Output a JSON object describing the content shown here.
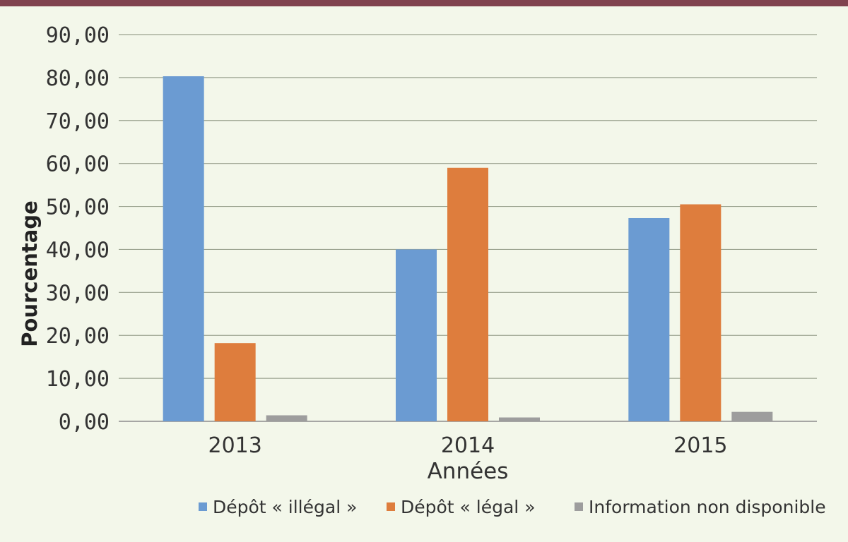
{
  "chart_data": {
    "type": "bar",
    "categories": [
      "2013",
      "2014",
      "2015"
    ],
    "series": [
      {
        "name": "Dépôt « illégal »",
        "values": [
          80.3,
          40.0,
          47.3
        ],
        "color": "#6b9bd2"
      },
      {
        "name": "Dépôt « légal »",
        "values": [
          18.2,
          59.0,
          50.5
        ],
        "color": "#de7d3d"
      },
      {
        "name": "Information non disponible",
        "values": [
          1.4,
          0.9,
          2.2
        ],
        "color": "#9d9d9d"
      }
    ],
    "title": "",
    "xlabel": "Années",
    "ylabel": "Pourcentage",
    "ylim": [
      0,
      90
    ],
    "yticks": [
      "0,00",
      "10,00",
      "20,00",
      "30,00",
      "40,00",
      "50,00",
      "60,00",
      "70,00",
      "80,00",
      "90,00"
    ],
    "grid": true,
    "legend_position": "bottom"
  },
  "colors": {
    "background": "#f3f7ea",
    "top_bar": "#80434f"
  }
}
